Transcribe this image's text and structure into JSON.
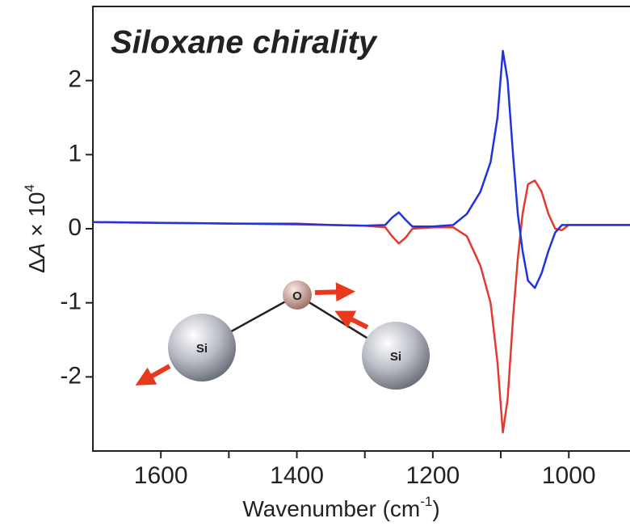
{
  "chart_data": {
    "type": "line",
    "title": "Siloxane chirality",
    "xlabel": [
      "Wavenumber (cm",
      "-1",
      ")"
    ],
    "ylabel": [
      "Δ",
      "A",
      " × 10",
      "4"
    ],
    "x": [
      1700,
      1600,
      1500,
      1400,
      1350,
      1300,
      1270,
      1260,
      1250,
      1240,
      1230,
      1200,
      1170,
      1150,
      1130,
      1115,
      1105,
      1097,
      1090,
      1082,
      1075,
      1068,
      1060,
      1050,
      1040,
      1030,
      1020,
      1010,
      1000,
      950,
      910
    ],
    "series": [
      {
        "color": "#2233dd",
        "values": [
          0.09,
          0.08,
          0.07,
          0.06,
          0.05,
          0.04,
          0.05,
          0.15,
          0.22,
          0.12,
          0.03,
          0.03,
          0.05,
          0.2,
          0.5,
          0.9,
          1.5,
          2.4,
          2.0,
          1.0,
          0.2,
          -0.3,
          -0.7,
          -0.8,
          -0.6,
          -0.3,
          -0.05,
          0.05,
          0.05,
          0.05,
          0.05
        ]
      },
      {
        "color": "#e23a2e",
        "values": [
          0.09,
          0.08,
          0.07,
          0.07,
          0.05,
          0.04,
          0.02,
          -0.1,
          -0.2,
          -0.12,
          0.0,
          0.02,
          0.02,
          -0.1,
          -0.5,
          -1.0,
          -1.8,
          -2.75,
          -2.3,
          -1.2,
          -0.4,
          0.2,
          0.6,
          0.65,
          0.5,
          0.2,
          0.0,
          -0.02,
          0.05,
          0.05,
          0.05
        ]
      }
    ],
    "xlim": [
      1700,
      910
    ],
    "xticks": [
      1600,
      1400,
      1200,
      1000
    ],
    "xminorticks": [
      1500,
      1300,
      1100
    ],
    "ylim": [
      -3,
      3
    ],
    "yticks": [
      -2,
      -1,
      0,
      1,
      2
    ],
    "atoms": [
      "Si",
      "O",
      "Si"
    ]
  }
}
